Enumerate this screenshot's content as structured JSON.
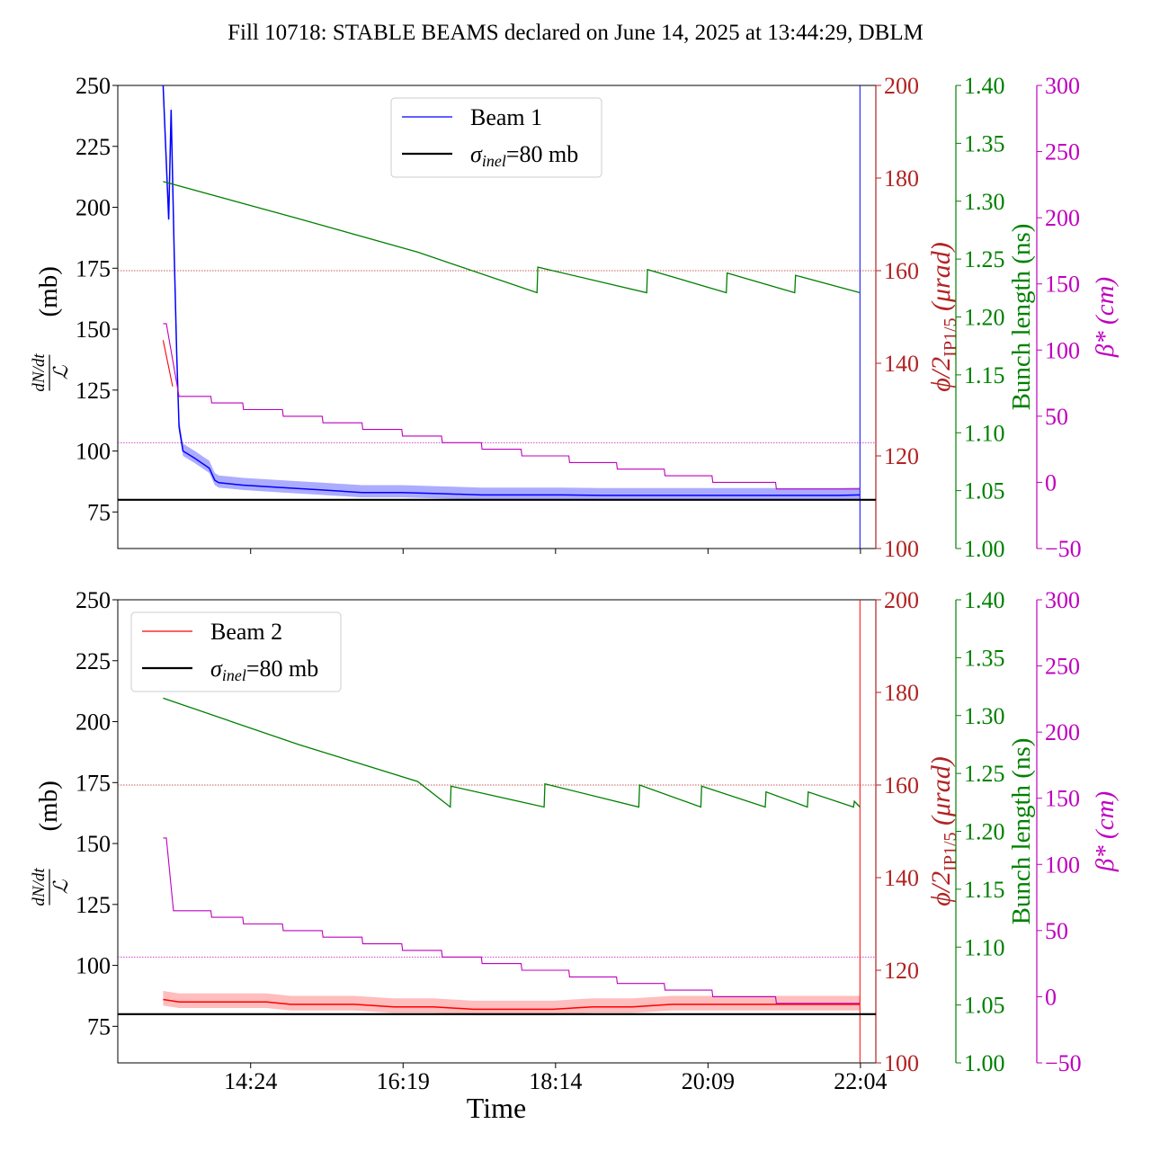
{
  "title": "Fill 10718: STABLE BEAMS declared on June 14, 2025 at 13:44:29, DBLM",
  "xlabel": "Time",
  "x_ticks": [
    "14:24",
    "16:19",
    "18:14",
    "20:09",
    "22:04"
  ],
  "left_axis": {
    "ticks": [
      75,
      100,
      125,
      150,
      175,
      200,
      225,
      250
    ],
    "label_unit": "(mb)",
    "frac_num": "dN/dt",
    "frac_den": "ℒ"
  },
  "phi_axis": {
    "ticks": [
      100,
      120,
      140,
      160,
      180,
      200
    ],
    "label": "ϕ/2",
    "label_sub": "IP1/5",
    "label_unit": "(μrad)"
  },
  "bunch_axis": {
    "ticks": [
      "1.00",
      "1.05",
      "1.10",
      "1.15",
      "1.20",
      "1.25",
      "1.30",
      "1.35",
      "1.40"
    ],
    "label": "Bunch length (ns)"
  },
  "beta_axis": {
    "ticks": [
      "−50",
      "0",
      "50",
      "100",
      "150",
      "200",
      "250",
      "300"
    ],
    "label": "β* (cm)"
  },
  "colors": {
    "beam1": "#0000ff",
    "beam1_band": "#8080ff",
    "beam2": "#ff0000",
    "beam2_band": "#ff9a9a",
    "phi": "#b22222",
    "bunch": "#008000",
    "beta": "#bf00bf",
    "sigma": "#000000"
  },
  "panels": [
    {
      "legend": {
        "beam": "Beam 1",
        "sigma": "σinel=80 mb",
        "sigma_sym": "σ",
        "sigma_sub": "inel",
        "sigma_val": "=80 mb",
        "position": "upper-center"
      }
    },
    {
      "legend": {
        "beam": "Beam 2",
        "sigma": "σinel=80 mb",
        "sigma_sym": "σ",
        "sigma_sub": "inel",
        "sigma_val": "=80 mb",
        "position": "upper-left"
      }
    }
  ],
  "chart_data": [
    {
      "type": "line",
      "panel": "top",
      "xlim_hours": [
        12.73,
        22.26
      ],
      "ylim": [
        60,
        250
      ],
      "series": [
        {
          "name": "Beam 1",
          "axis": "left",
          "points": [
            [
              13.3,
              250
            ],
            [
              13.37,
              195
            ],
            [
              13.4,
              240
            ],
            [
              13.44,
              180
            ],
            [
              13.47,
              140
            ],
            [
              13.5,
              110
            ],
            [
              13.55,
              100
            ],
            [
              13.7,
              97
            ],
            [
              13.88,
              93
            ],
            [
              13.95,
              88
            ],
            [
              14.0,
              87
            ],
            [
              14.3,
              86
            ],
            [
              14.8,
              85
            ],
            [
              15.3,
              84
            ],
            [
              15.8,
              83
            ],
            [
              16.3,
              83
            ],
            [
              16.8,
              82.5
            ],
            [
              17.3,
              82
            ],
            [
              17.8,
              82
            ],
            [
              18.3,
              82
            ],
            [
              18.8,
              81.8
            ],
            [
              19.3,
              81.8
            ],
            [
              19.8,
              81.8
            ],
            [
              20.3,
              81.8
            ],
            [
              20.8,
              81.8
            ],
            [
              21.3,
              81.8
            ],
            [
              21.8,
              81.8
            ],
            [
              22.06,
              82
            ]
          ]
        },
        {
          "name": "σinel=80 mb",
          "axis": "left",
          "points": [
            [
              12.73,
              80
            ],
            [
              22.26,
              80
            ]
          ]
        },
        {
          "axis": "bunch",
          "points": [
            [
              13.3,
              1.317
            ],
            [
              15.0,
              1.285
            ],
            [
              16.5,
              1.256
            ],
            [
              18.0,
              1.221
            ],
            [
              18.01,
              1.243
            ],
            [
              19.38,
              1.221
            ],
            [
              19.39,
              1.241
            ],
            [
              20.38,
              1.221
            ],
            [
              20.39,
              1.238
            ],
            [
              21.24,
              1.221
            ],
            [
              21.25,
              1.236
            ],
            [
              22.06,
              1.221
            ]
          ]
        },
        {
          "axis": "beta",
          "points": [
            [
              13.3,
              120
            ],
            [
              13.34,
              120
            ],
            [
              13.5,
              65
            ],
            [
              13.9,
              65
            ],
            [
              13.91,
              60
            ],
            [
              14.3,
              60
            ],
            [
              14.31,
              55
            ],
            [
              14.8,
              55
            ],
            [
              14.81,
              50
            ],
            [
              15.3,
              50
            ],
            [
              15.31,
              45
            ],
            [
              15.8,
              45
            ],
            [
              15.81,
              40
            ],
            [
              16.3,
              40
            ],
            [
              16.31,
              35
            ],
            [
              16.8,
              35
            ],
            [
              16.81,
              30
            ],
            [
              17.3,
              30
            ],
            [
              17.31,
              25
            ],
            [
              17.8,
              25
            ],
            [
              17.81,
              20
            ],
            [
              18.4,
              20
            ],
            [
              18.41,
              15
            ],
            [
              19.0,
              15
            ],
            [
              19.01,
              10
            ],
            [
              19.6,
              10
            ],
            [
              19.61,
              5
            ],
            [
              20.2,
              5
            ],
            [
              20.21,
              0
            ],
            [
              21.0,
              0
            ],
            [
              21.01,
              -5
            ],
            [
              22.06,
              -5
            ]
          ]
        },
        {
          "axis": "phi",
          "points": [
            [
              13.3,
              145
            ],
            [
              13.42,
              135
            ]
          ]
        }
      ],
      "reference_lines": {
        "phi": 160,
        "beta": 30
      }
    },
    {
      "type": "line",
      "panel": "bottom",
      "xlim_hours": [
        12.73,
        22.26
      ],
      "ylim": [
        60,
        250
      ],
      "series": [
        {
          "name": "Beam 2",
          "axis": "left",
          "points": [
            [
              13.3,
              86
            ],
            [
              13.5,
              85
            ],
            [
              14.0,
              85
            ],
            [
              14.3,
              85
            ],
            [
              14.6,
              85
            ],
            [
              14.9,
              84
            ],
            [
              15.3,
              84
            ],
            [
              15.7,
              84
            ],
            [
              16.2,
              83
            ],
            [
              16.7,
              83
            ],
            [
              17.2,
              82
            ],
            [
              17.7,
              82
            ],
            [
              18.2,
              82
            ],
            [
              18.7,
              83
            ],
            [
              19.2,
              83
            ],
            [
              19.7,
              84
            ],
            [
              20.2,
              84
            ],
            [
              20.6,
              84
            ],
            [
              21.0,
              84
            ],
            [
              21.5,
              84
            ],
            [
              22.06,
              84
            ]
          ]
        },
        {
          "name": "σinel=80 mb",
          "axis": "left",
          "points": [
            [
              12.73,
              80
            ],
            [
              22.26,
              80
            ]
          ]
        },
        {
          "axis": "bunch",
          "points": [
            [
              13.3,
              1.315
            ],
            [
              15.0,
              1.275
            ],
            [
              16.5,
              1.243
            ],
            [
              16.91,
              1.221
            ],
            [
              16.92,
              1.239
            ],
            [
              18.09,
              1.221
            ],
            [
              18.1,
              1.241
            ],
            [
              19.28,
              1.221
            ],
            [
              19.29,
              1.24
            ],
            [
              20.06,
              1.221
            ],
            [
              20.07,
              1.239
            ],
            [
              20.87,
              1.221
            ],
            [
              20.88,
              1.234
            ],
            [
              21.4,
              1.221
            ],
            [
              21.41,
              1.234
            ],
            [
              21.98,
              1.221
            ],
            [
              21.99,
              1.226
            ],
            [
              22.06,
              1.221
            ]
          ]
        },
        {
          "axis": "beta",
          "points": [
            [
              13.3,
              120
            ],
            [
              13.34,
              120
            ],
            [
              13.43,
              65
            ],
            [
              13.9,
              65
            ],
            [
              13.91,
              60
            ],
            [
              14.3,
              60
            ],
            [
              14.31,
              55
            ],
            [
              14.8,
              55
            ],
            [
              14.81,
              50
            ],
            [
              15.3,
              50
            ],
            [
              15.31,
              45
            ],
            [
              15.8,
              45
            ],
            [
              15.81,
              40
            ],
            [
              16.3,
              40
            ],
            [
              16.31,
              35
            ],
            [
              16.8,
              35
            ],
            [
              16.81,
              30
            ],
            [
              17.3,
              30
            ],
            [
              17.31,
              25
            ],
            [
              17.8,
              25
            ],
            [
              17.81,
              20
            ],
            [
              18.4,
              20
            ],
            [
              18.41,
              15
            ],
            [
              19.0,
              15
            ],
            [
              19.01,
              10
            ],
            [
              19.6,
              10
            ],
            [
              19.61,
              5
            ],
            [
              20.2,
              5
            ],
            [
              20.21,
              0
            ],
            [
              21.0,
              0
            ],
            [
              21.01,
              -5
            ],
            [
              22.06,
              -5
            ]
          ]
        }
      ],
      "reference_lines": {
        "phi": 160,
        "beta": 30
      }
    }
  ]
}
